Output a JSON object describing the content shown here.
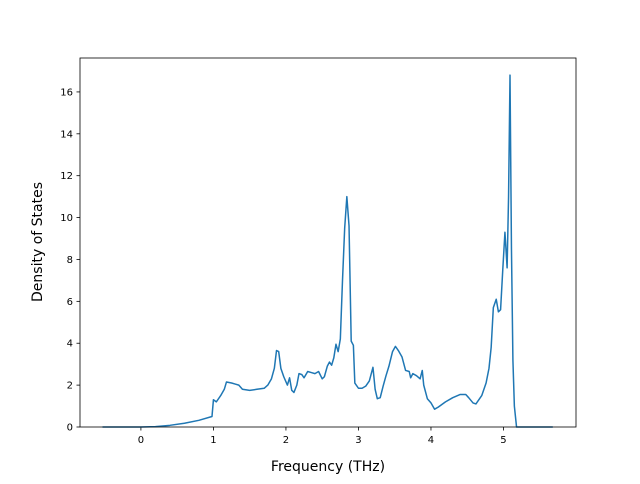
{
  "chart_data": {
    "type": "line",
    "x_label": "Frequency (THz)",
    "y_label": "Density of States",
    "x": [
      -0.53,
      -0.3,
      0,
      0.2,
      0.4,
      0.6,
      0.8,
      0.98,
      1.0,
      1.04,
      1.1,
      1.15,
      1.18,
      1.25,
      1.3,
      1.35,
      1.4,
      1.5,
      1.6,
      1.7,
      1.75,
      1.8,
      1.84,
      1.87,
      1.9,
      1.93,
      1.97,
      2.02,
      2.05,
      2.08,
      2.11,
      2.15,
      2.18,
      2.22,
      2.25,
      2.3,
      2.35,
      2.4,
      2.45,
      2.5,
      2.53,
      2.57,
      2.6,
      2.63,
      2.66,
      2.69,
      2.72,
      2.75,
      2.78,
      2.81,
      2.84,
      2.87,
      2.9,
      2.93,
      2.95,
      3.0,
      3.05,
      3.1,
      3.15,
      3.2,
      3.23,
      3.26,
      3.3,
      3.34,
      3.38,
      3.42,
      3.47,
      3.51,
      3.55,
      3.6,
      3.65,
      3.7,
      3.72,
      3.75,
      3.8,
      3.85,
      3.88,
      3.9,
      3.95,
      4.0,
      4.05,
      4.1,
      4.2,
      4.3,
      4.4,
      4.48,
      4.52,
      4.58,
      4.62,
      4.7,
      4.76,
      4.8,
      4.83,
      4.86,
      4.9,
      4.93,
      4.96,
      4.99,
      5.02,
      5.05,
      5.07,
      5.09,
      5.11,
      5.13,
      5.15,
      5.18,
      5.4,
      5.68
    ],
    "series": [
      {
        "color": "#1f77b4",
        "values": [
          0,
          0,
          0,
          0.02,
          0.08,
          0.18,
          0.32,
          0.5,
          1.3,
          1.2,
          1.5,
          1.8,
          2.15,
          2.1,
          2.05,
          2.0,
          1.8,
          1.75,
          1.8,
          1.85,
          2.0,
          2.3,
          2.8,
          3.65,
          3.6,
          2.8,
          2.4,
          2.0,
          2.35,
          1.75,
          1.65,
          2.0,
          2.55,
          2.5,
          2.35,
          2.65,
          2.6,
          2.55,
          2.65,
          2.3,
          2.4,
          2.9,
          3.1,
          2.95,
          3.3,
          3.95,
          3.6,
          4.2,
          7.0,
          9.5,
          11.0,
          9.6,
          4.1,
          3.9,
          2.1,
          1.85,
          1.85,
          1.95,
          2.2,
          2.85,
          1.8,
          1.35,
          1.4,
          1.95,
          2.45,
          2.9,
          3.6,
          3.85,
          3.65,
          3.35,
          2.7,
          2.65,
          2.35,
          2.55,
          2.45,
          2.3,
          2.7,
          2.0,
          1.35,
          1.15,
          0.85,
          0.95,
          1.2,
          1.4,
          1.55,
          1.55,
          1.4,
          1.15,
          1.1,
          1.5,
          2.1,
          2.8,
          3.8,
          5.7,
          6.1,
          5.5,
          5.6,
          7.5,
          9.3,
          7.6,
          11,
          16.8,
          8.5,
          3.2,
          1.0,
          0,
          0,
          0
        ]
      }
    ],
    "xlim": [
      -0.84,
      6.0
    ],
    "ylim": [
      0,
      17.62
    ],
    "xticks": [
      0,
      1,
      2,
      3,
      4,
      5
    ],
    "yticks": [
      0,
      2,
      4,
      6,
      8,
      10,
      12,
      14,
      16
    ]
  }
}
